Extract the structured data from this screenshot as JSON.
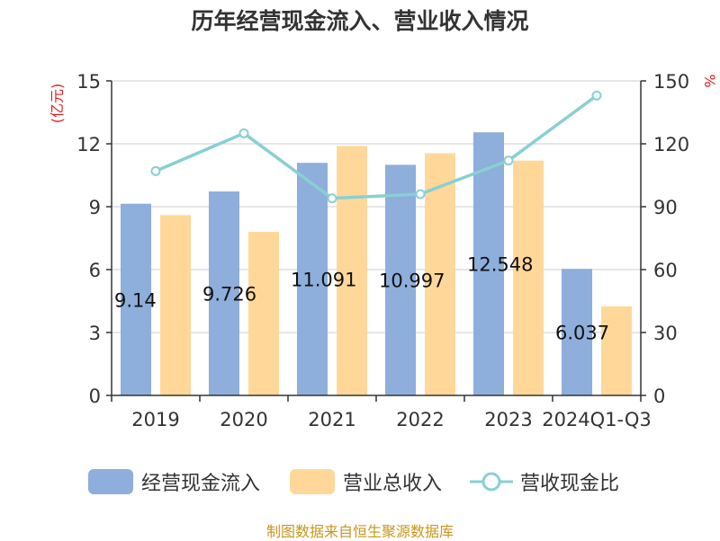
{
  "title": "历年经营现金流入、营业收入情况",
  "source": "制图数据来自恒生聚源数据库",
  "colors": {
    "cash_inflow": "#8eaedb",
    "revenue": "#ffd899",
    "ratio_line": "#88d0d2",
    "axis_unit_left": "#e02020",
    "axis_unit_right": "#e02020"
  },
  "chart_data": {
    "type": "bar",
    "title": "历年经营现金流入、营业收入情况",
    "categories": [
      "2019",
      "2020",
      "2021",
      "2022",
      "2023",
      "2024Q1-Q3"
    ],
    "ylabel": "(亿元)",
    "ylabel_right": "%",
    "ylim": [
      0,
      15
    ],
    "yticks": [
      0,
      3,
      6,
      9,
      12,
      15
    ],
    "ylim_right": [
      0,
      150
    ],
    "yticks_right": [
      0,
      30,
      60,
      90,
      120,
      150
    ],
    "grid": true,
    "legend_position": "bottom",
    "series": [
      {
        "name": "经营现金流入",
        "type": "bar",
        "axis": "left",
        "values": [
          9.14,
          9.726,
          11.091,
          10.997,
          12.548,
          6.037
        ],
        "labels": [
          "9.14",
          "9.726",
          "11.091",
          "10.997",
          "12.548",
          "6.037"
        ]
      },
      {
        "name": "营业总收入",
        "type": "bar",
        "axis": "left",
        "values": [
          8.6,
          7.8,
          11.9,
          11.55,
          11.2,
          4.25
        ]
      },
      {
        "name": "营收现金比",
        "type": "line",
        "axis": "right",
        "values": [
          107,
          125,
          94,
          96,
          112,
          143
        ]
      }
    ]
  }
}
